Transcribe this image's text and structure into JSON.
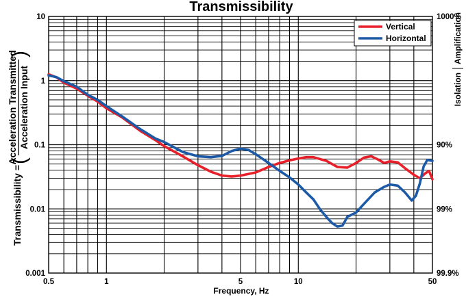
{
  "chart_data": {
    "type": "line",
    "title": "Transmissibility",
    "xlabel": "Frequency, Hz",
    "ylabel": {
      "prefix": "Transmissibility =",
      "numerator": "Acceleration Transmitted",
      "denominator": "Acceleration Input"
    },
    "right_axis": {
      "label_top": "Amplification",
      "label_bottom": "Isolation",
      "ticks": [
        {
          "y": 10,
          "label": "1000%"
        },
        {
          "y": 0.1,
          "label": "90%"
        },
        {
          "y": 0.01,
          "label": "99%"
        },
        {
          "y": 0.001,
          "label": "99.9%"
        }
      ]
    },
    "x_scale": "log",
    "y_scale": "log",
    "xlim": [
      0.5,
      50
    ],
    "ylim": [
      0.001,
      10
    ],
    "x_ticks": [
      {
        "v": 0.5,
        "label": "0.5"
      },
      {
        "v": 1,
        "label": "1"
      },
      {
        "v": 5,
        "label": "5"
      },
      {
        "v": 10,
        "label": "10"
      },
      {
        "v": 50,
        "label": "50"
      }
    ],
    "y_ticks": [
      {
        "v": 10,
        "label": "10"
      },
      {
        "v": 1,
        "label": "1"
      },
      {
        "v": 0.1,
        "label": "0.1"
      },
      {
        "v": 0.01,
        "label": "0.01"
      },
      {
        "v": 0.001,
        "label": "0.001"
      }
    ],
    "grid": true,
    "legend_position": "top-right",
    "series": [
      {
        "name": "Vertical",
        "color": "#e8202a",
        "points": [
          [
            0.5,
            1.25
          ],
          [
            0.55,
            1.12
          ],
          [
            0.6,
            0.93
          ],
          [
            0.7,
            0.75
          ],
          [
            0.8,
            0.58
          ],
          [
            0.9,
            0.47
          ],
          [
            1.0,
            0.37
          ],
          [
            1.2,
            0.27
          ],
          [
            1.5,
            0.165
          ],
          [
            1.8,
            0.118
          ],
          [
            2.0,
            0.095
          ],
          [
            2.5,
            0.066
          ],
          [
            3.0,
            0.048
          ],
          [
            3.5,
            0.038
          ],
          [
            4.0,
            0.033
          ],
          [
            4.5,
            0.032
          ],
          [
            5.0,
            0.033
          ],
          [
            6.0,
            0.037
          ],
          [
            7.0,
            0.045
          ],
          [
            8.0,
            0.052
          ],
          [
            9.0,
            0.057
          ],
          [
            10,
            0.061
          ],
          [
            11,
            0.064
          ],
          [
            12,
            0.064
          ],
          [
            14,
            0.056
          ],
          [
            16,
            0.045
          ],
          [
            18,
            0.044
          ],
          [
            20,
            0.052
          ],
          [
            22,
            0.063
          ],
          [
            24,
            0.066
          ],
          [
            26,
            0.059
          ],
          [
            28,
            0.052
          ],
          [
            30,
            0.055
          ],
          [
            33,
            0.053
          ],
          [
            36,
            0.043
          ],
          [
            40,
            0.034
          ],
          [
            43,
            0.03
          ],
          [
            46,
            0.036
          ],
          [
            48,
            0.039
          ],
          [
            50,
            0.029
          ]
        ]
      },
      {
        "name": "Horizontal",
        "color": "#1c5aa8",
        "points": [
          [
            0.5,
            1.2
          ],
          [
            0.55,
            1.13
          ],
          [
            0.6,
            0.98
          ],
          [
            0.7,
            0.8
          ],
          [
            0.8,
            0.6
          ],
          [
            0.9,
            0.5
          ],
          [
            1.0,
            0.4
          ],
          [
            1.2,
            0.28
          ],
          [
            1.5,
            0.175
          ],
          [
            1.8,
            0.125
          ],
          [
            2.0,
            0.11
          ],
          [
            2.5,
            0.077
          ],
          [
            3.0,
            0.066
          ],
          [
            3.5,
            0.064
          ],
          [
            4.0,
            0.067
          ],
          [
            4.5,
            0.08
          ],
          [
            5.0,
            0.087
          ],
          [
            5.5,
            0.083
          ],
          [
            6.0,
            0.071
          ],
          [
            7.0,
            0.052
          ],
          [
            8.0,
            0.039
          ],
          [
            9.0,
            0.031
          ],
          [
            10,
            0.024
          ],
          [
            11,
            0.018
          ],
          [
            12,
            0.014
          ],
          [
            13,
            0.0098
          ],
          [
            14,
            0.0075
          ],
          [
            15,
            0.006
          ],
          [
            16,
            0.0053
          ],
          [
            17,
            0.0055
          ],
          [
            18,
            0.0075
          ],
          [
            20,
            0.0088
          ],
          [
            22,
            0.012
          ],
          [
            25,
            0.018
          ],
          [
            28,
            0.022
          ],
          [
            30,
            0.024
          ],
          [
            33,
            0.023
          ],
          [
            36,
            0.018
          ],
          [
            39,
            0.0135
          ],
          [
            41,
            0.016
          ],
          [
            43,
            0.025
          ],
          [
            45,
            0.046
          ],
          [
            47,
            0.058
          ],
          [
            50,
            0.056
          ]
        ]
      }
    ]
  }
}
